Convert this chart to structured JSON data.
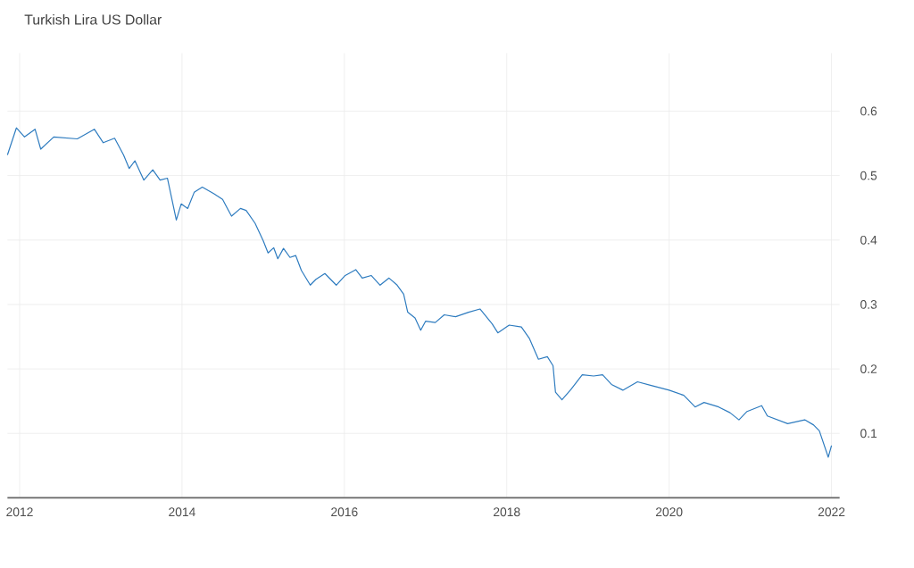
{
  "chart_data": {
    "type": "line",
    "title": "Turkish Lira US Dollar",
    "x": [
      2011.85,
      2011.96,
      2012.06,
      2012.19,
      2012.26,
      2012.42,
      2012.71,
      2012.92,
      2013.03,
      2013.17,
      2013.28,
      2013.35,
      2013.42,
      2013.53,
      2013.64,
      2013.73,
      2013.82,
      2013.93,
      2013.99,
      2014.07,
      2014.15,
      2014.25,
      2014.39,
      2014.5,
      2014.61,
      2014.72,
      2014.79,
      2014.9,
      2015.0,
      2015.06,
      2015.13,
      2015.18,
      2015.25,
      2015.33,
      2015.4,
      2015.47,
      2015.58,
      2015.65,
      2015.76,
      2015.83,
      2015.9,
      2016.01,
      2016.14,
      2016.22,
      2016.33,
      2016.44,
      2016.55,
      2016.65,
      2016.73,
      2016.78,
      2016.87,
      2016.94,
      2017.0,
      2017.12,
      2017.23,
      2017.37,
      2017.53,
      2017.67,
      2017.82,
      2017.89,
      2018.03,
      2018.18,
      2018.28,
      2018.39,
      2018.5,
      2018.57,
      2018.6,
      2018.68,
      2018.79,
      2018.93,
      2019.07,
      2019.18,
      2019.29,
      2019.43,
      2019.61,
      2019.79,
      2020.0,
      2020.18,
      2020.32,
      2020.43,
      2020.61,
      2020.75,
      2020.86,
      2020.96,
      2021.14,
      2021.21,
      2021.46,
      2021.67,
      2021.78,
      2021.85,
      2021.96,
      2022.0
    ],
    "values": [
      0.532,
      0.574,
      0.56,
      0.572,
      0.541,
      0.56,
      0.557,
      0.572,
      0.551,
      0.558,
      0.532,
      0.511,
      0.523,
      0.493,
      0.509,
      0.493,
      0.496,
      0.431,
      0.456,
      0.449,
      0.474,
      0.482,
      0.472,
      0.463,
      0.437,
      0.449,
      0.446,
      0.426,
      0.399,
      0.38,
      0.388,
      0.371,
      0.387,
      0.373,
      0.376,
      0.353,
      0.33,
      0.339,
      0.348,
      0.339,
      0.33,
      0.345,
      0.354,
      0.341,
      0.345,
      0.33,
      0.341,
      0.33,
      0.316,
      0.288,
      0.279,
      0.26,
      0.274,
      0.272,
      0.284,
      0.281,
      0.288,
      0.293,
      0.27,
      0.256,
      0.268,
      0.265,
      0.247,
      0.215,
      0.219,
      0.205,
      0.164,
      0.152,
      0.168,
      0.191,
      0.189,
      0.191,
      0.176,
      0.167,
      0.18,
      0.174,
      0.167,
      0.159,
      0.141,
      0.148,
      0.141,
      0.132,
      0.121,
      0.134,
      0.143,
      0.127,
      0.115,
      0.121,
      0.113,
      0.104,
      0.063,
      0.081
    ],
    "color": "#2d7bbf",
    "xlim": [
      2011.85,
      2022.1
    ],
    "xticks": [
      2012,
      2014,
      2016,
      2018,
      2020,
      2022
    ],
    "ylim": [
      0,
      0.69
    ],
    "yticks": [
      0.1,
      0.2,
      0.3,
      0.4,
      0.5,
      0.6
    ],
    "grid": true,
    "legend": false,
    "marker": "none",
    "line_style": "solid"
  }
}
